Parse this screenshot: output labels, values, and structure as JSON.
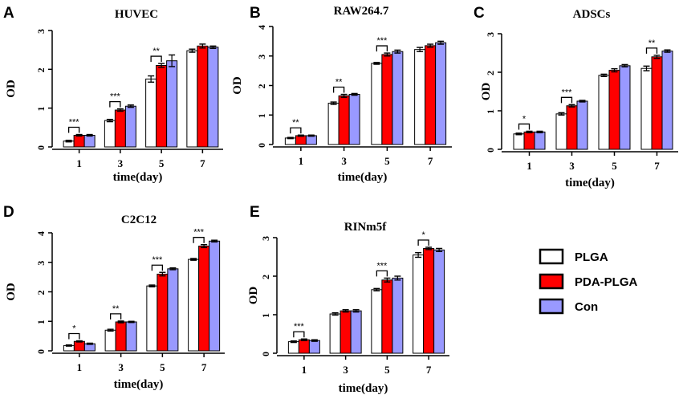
{
  "legend": {
    "items": [
      {
        "label": "PLGA",
        "color": "#ffffff"
      },
      {
        "label": "PDA-PLGA",
        "color": "#ff0000"
      },
      {
        "label": "Con",
        "color": "#9999ff"
      }
    ]
  },
  "chart_data": [
    {
      "panel": "A",
      "type": "bar",
      "title": "HUVEC",
      "xlabel": "time(day)",
      "ylabel": "OD",
      "categories": [
        "1",
        "3",
        "5",
        "7"
      ],
      "ylim": [
        0,
        3
      ],
      "yticks": [
        "0",
        "1",
        "2",
        "3"
      ],
      "series": [
        {
          "name": "PLGA",
          "values": [
            0.15,
            0.68,
            1.75,
            2.48
          ],
          "errors": [
            0.02,
            0.03,
            0.08,
            0.04
          ]
        },
        {
          "name": "PDA-PLGA",
          "values": [
            0.3,
            0.95,
            2.1,
            2.6
          ],
          "errors": [
            0.02,
            0.03,
            0.05,
            0.05
          ]
        },
        {
          "name": "Con",
          "values": [
            0.3,
            1.05,
            2.22,
            2.57
          ],
          "errors": [
            0.02,
            0.03,
            0.15,
            0.03
          ]
        }
      ],
      "significance": [
        {
          "category": "1",
          "label": "***"
        },
        {
          "category": "3",
          "label": "***"
        },
        {
          "category": "5",
          "label": "**"
        }
      ]
    },
    {
      "panel": "B",
      "type": "bar",
      "title": "RAW264.7",
      "xlabel": "time(day)",
      "ylabel": "OD",
      "categories": [
        "1",
        "3",
        "5",
        "7"
      ],
      "ylim": [
        0,
        4
      ],
      "yticks": [
        "0",
        "1",
        "2",
        "3",
        "4"
      ],
      "series": [
        {
          "name": "PLGA",
          "values": [
            0.22,
            1.4,
            2.75,
            3.22
          ],
          "errors": [
            0.02,
            0.04,
            0.03,
            0.07
          ]
        },
        {
          "name": "PDA-PLGA",
          "values": [
            0.3,
            1.65,
            3.05,
            3.35
          ],
          "errors": [
            0.02,
            0.05,
            0.05,
            0.05
          ]
        },
        {
          "name": "Con",
          "values": [
            0.3,
            1.7,
            3.15,
            3.45
          ],
          "errors": [
            0.02,
            0.03,
            0.05,
            0.05
          ]
        }
      ],
      "significance": [
        {
          "category": "1",
          "label": "**"
        },
        {
          "category": "3",
          "label": "**"
        },
        {
          "category": "5",
          "label": "***"
        }
      ]
    },
    {
      "panel": "C",
      "type": "bar",
      "title": "ADSCs",
      "xlabel": "time(day)",
      "ylabel": "OD",
      "categories": [
        "1",
        "3",
        "5",
        "7"
      ],
      "ylim": [
        0,
        3
      ],
      "yticks": [
        "0",
        "1",
        "2",
        "3"
      ],
      "series": [
        {
          "name": "PLGA",
          "values": [
            0.4,
            0.92,
            1.92,
            2.1
          ],
          "errors": [
            0.02,
            0.03,
            0.03,
            0.06
          ]
        },
        {
          "name": "PDA-PLGA",
          "values": [
            0.45,
            1.13,
            2.05,
            2.4
          ],
          "errors": [
            0.02,
            0.03,
            0.04,
            0.04
          ]
        },
        {
          "name": "Con",
          "values": [
            0.45,
            1.25,
            2.17,
            2.55
          ],
          "errors": [
            0.02,
            0.02,
            0.03,
            0.03
          ]
        }
      ],
      "significance": [
        {
          "category": "1",
          "label": "*"
        },
        {
          "category": "3",
          "label": "***"
        },
        {
          "category": "7",
          "label": "**"
        }
      ]
    },
    {
      "panel": "D",
      "type": "bar",
      "title": "C2C12",
      "xlabel": "time(day)",
      "ylabel": "OD",
      "categories": [
        "1",
        "3",
        "5",
        "7"
      ],
      "ylim": [
        0,
        4
      ],
      "yticks": [
        "0",
        "1",
        "2",
        "3",
        "4"
      ],
      "series": [
        {
          "name": "PLGA",
          "values": [
            0.18,
            0.7,
            2.2,
            3.1
          ],
          "errors": [
            0.02,
            0.03,
            0.03,
            0.03
          ]
        },
        {
          "name": "PDA-PLGA",
          "values": [
            0.32,
            0.98,
            2.6,
            3.55
          ],
          "errors": [
            0.02,
            0.03,
            0.06,
            0.05
          ]
        },
        {
          "name": "Con",
          "values": [
            0.24,
            0.98,
            2.78,
            3.72
          ],
          "errors": [
            0.02,
            0.02,
            0.03,
            0.03
          ]
        }
      ],
      "significance": [
        {
          "category": "1",
          "label": "*"
        },
        {
          "category": "3",
          "label": "**"
        },
        {
          "category": "5",
          "label": "***"
        },
        {
          "category": "7",
          "label": "***"
        }
      ]
    },
    {
      "panel": "E",
      "type": "bar",
      "title": "RINm5f",
      "xlabel": "time(day)",
      "ylabel": "OD",
      "categories": [
        "1",
        "3",
        "5",
        "7"
      ],
      "ylim": [
        0,
        3
      ],
      "yticks": [
        "0",
        "1",
        "2",
        "3"
      ],
      "series": [
        {
          "name": "PLGA",
          "values": [
            0.3,
            1.02,
            1.65,
            2.55
          ],
          "errors": [
            0.02,
            0.03,
            0.03,
            0.06
          ]
        },
        {
          "name": "PDA-PLGA",
          "values": [
            0.35,
            1.1,
            1.9,
            2.72
          ],
          "errors": [
            0.02,
            0.03,
            0.05,
            0.03
          ]
        },
        {
          "name": "Con",
          "values": [
            0.33,
            1.1,
            1.95,
            2.68
          ],
          "errors": [
            0.02,
            0.03,
            0.05,
            0.04
          ]
        }
      ],
      "significance": [
        {
          "category": "1",
          "label": "***"
        },
        {
          "category": "5",
          "label": "***"
        },
        {
          "category": "7",
          "label": "*"
        }
      ]
    }
  ]
}
